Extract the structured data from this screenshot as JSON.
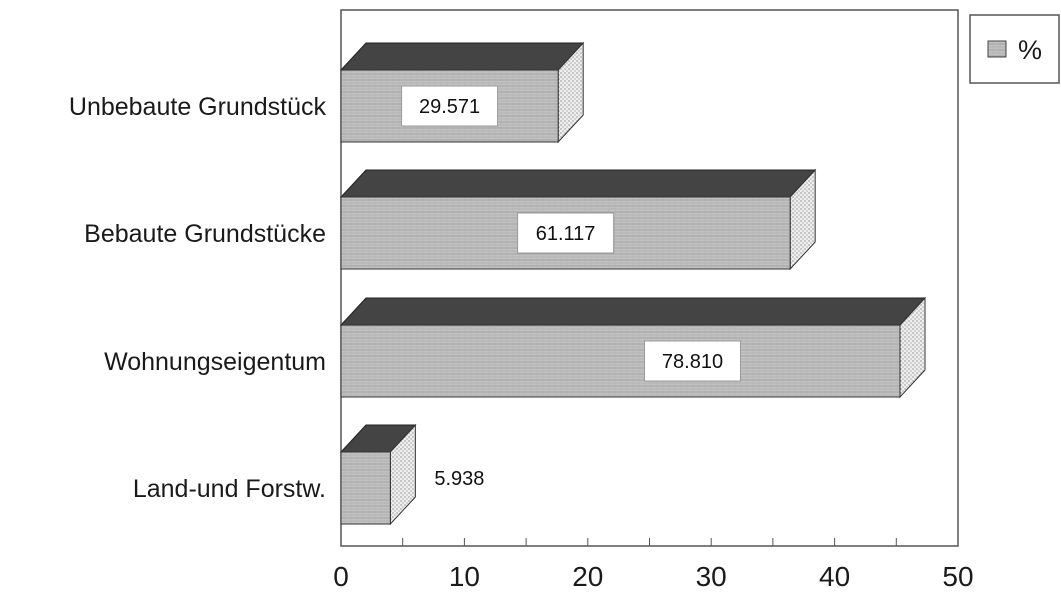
{
  "chart_data": {
    "type": "bar",
    "orientation": "horizontal",
    "style": "3d",
    "categories": [
      "Unbebaute Grundstück",
      "Bebaute Grundstücke",
      "Wohnungseigentum",
      "Land-und Forstw."
    ],
    "series": [
      {
        "name": "%",
        "values": [
          17.6,
          36.4,
          45.3,
          4.0
        ],
        "labels": [
          "29.571",
          "61.117",
          "78.810",
          "5.938"
        ]
      }
    ],
    "xlim": [
      0,
      50
    ],
    "xticks": [
      "0",
      "10",
      "20",
      "30",
      "40",
      "50"
    ],
    "grid": false,
    "legend_position": "top-right",
    "colors": {
      "bar_front": "#bdbdbd",
      "bar_top": "#444444",
      "bar_side": "#e6e6e6",
      "frame": "#555555"
    }
  }
}
